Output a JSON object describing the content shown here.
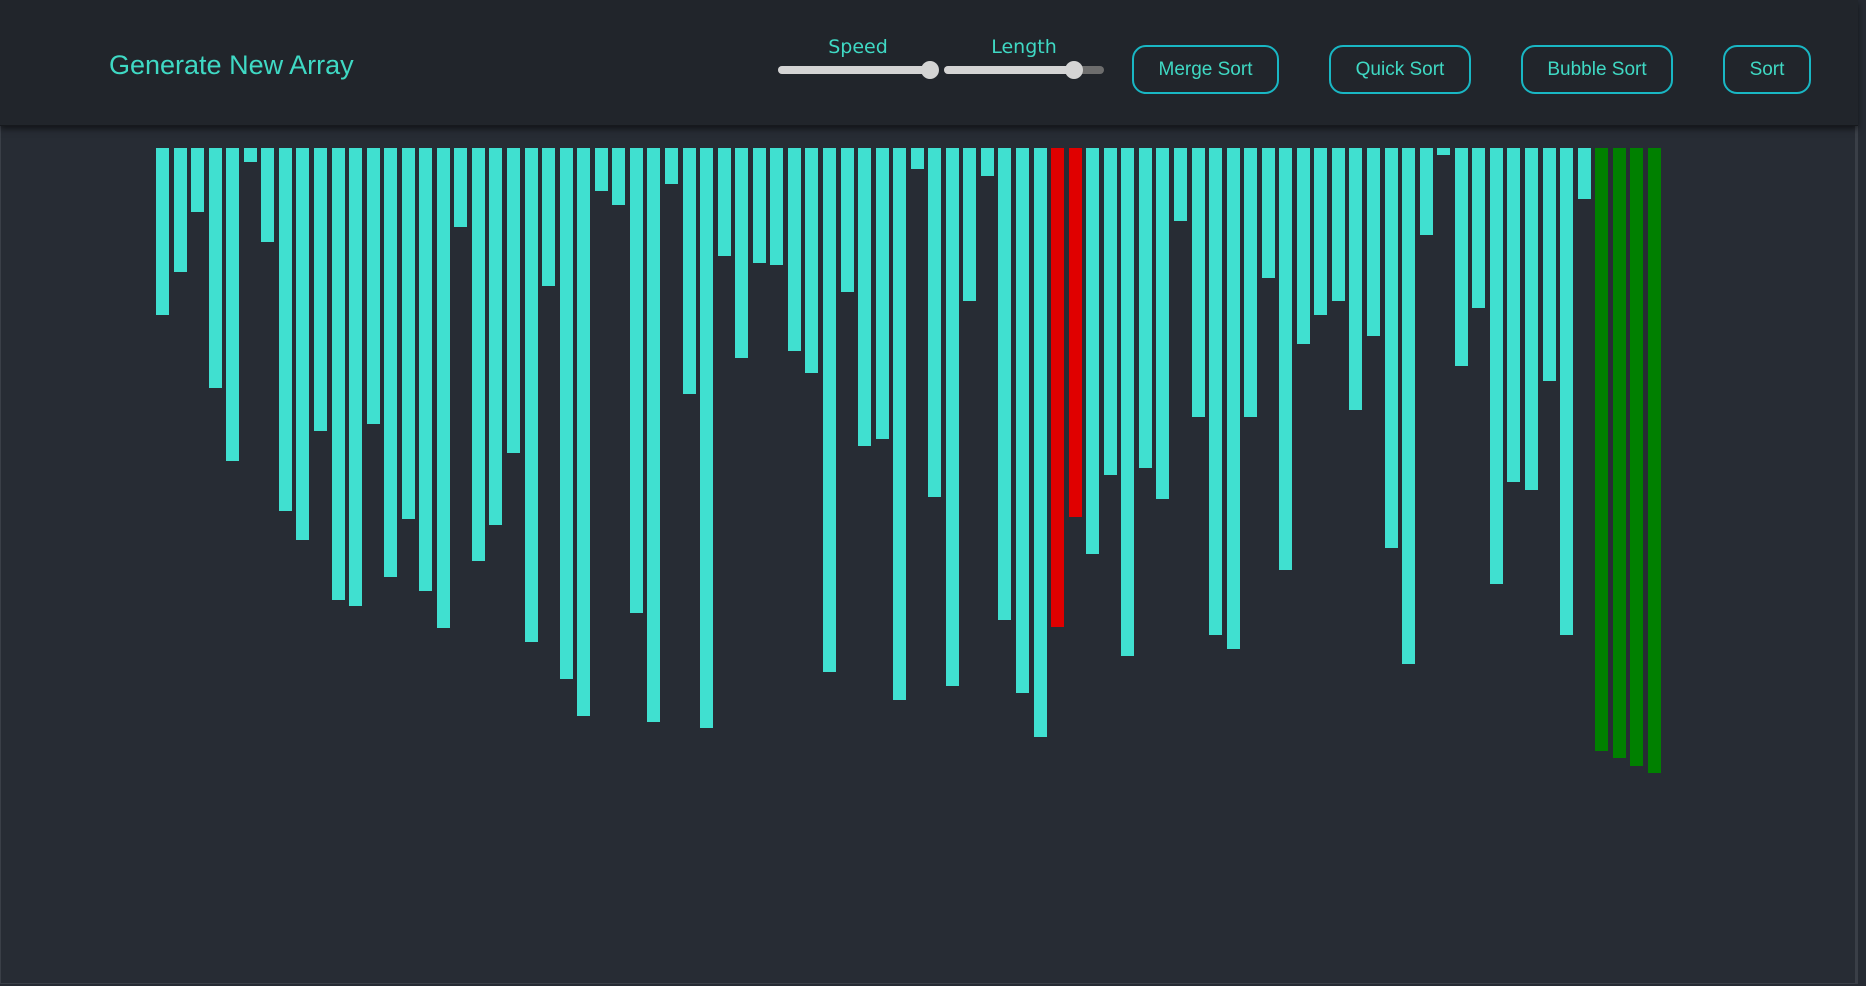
{
  "navbar": {
    "generate_label": "Generate New Array",
    "speed_label": "Speed",
    "speed_value": 0.95,
    "length_label": "Length",
    "length_value": 0.81,
    "buttons": [
      {
        "id": "merge",
        "label": "Merge Sort"
      },
      {
        "id": "quick",
        "label": "Quick Sort"
      },
      {
        "id": "bubble",
        "label": "Bubble Sort"
      },
      {
        "id": "sort",
        "label": "Sort"
      }
    ]
  },
  "colors": {
    "default": "#40e0d0",
    "comparing": "#e00000",
    "sorted": "#008000",
    "accent": "#3fd9c4"
  },
  "array": {
    "values": [
      167,
      124,
      64,
      240,
      313,
      14,
      94,
      363,
      392,
      283,
      452,
      458,
      276,
      429,
      371,
      443,
      480,
      79,
      413,
      377,
      305,
      494,
      138,
      531,
      568,
      43,
      57,
      465,
      574,
      36,
      246,
      580,
      108,
      210,
      115,
      117,
      203,
      225,
      524,
      144,
      298,
      291,
      552,
      21,
      349,
      538,
      153,
      28,
      472,
      545,
      589,
      479,
      369,
      406,
      327,
      508,
      320,
      351,
      73,
      269,
      487,
      501,
      269,
      130,
      422,
      196,
      167,
      153,
      262,
      188,
      400,
      516,
      87,
      7,
      218,
      160,
      436,
      334,
      342,
      233,
      487,
      51,
      603,
      610,
      618,
      625
    ],
    "states": [
      "d",
      "d",
      "d",
      "d",
      "d",
      "d",
      "d",
      "d",
      "d",
      "d",
      "d",
      "d",
      "d",
      "d",
      "d",
      "d",
      "d",
      "d",
      "d",
      "d",
      "d",
      "d",
      "d",
      "d",
      "d",
      "d",
      "d",
      "d",
      "d",
      "d",
      "d",
      "d",
      "d",
      "d",
      "d",
      "d",
      "d",
      "d",
      "d",
      "d",
      "d",
      "d",
      "d",
      "d",
      "d",
      "d",
      "d",
      "d",
      "d",
      "d",
      "d",
      "c",
      "c",
      "d",
      "d",
      "d",
      "d",
      "d",
      "d",
      "d",
      "d",
      "d",
      "d",
      "d",
      "d",
      "d",
      "d",
      "d",
      "d",
      "d",
      "d",
      "d",
      "d",
      "d",
      "d",
      "d",
      "d",
      "d",
      "d",
      "d",
      "d",
      "d",
      "s",
      "s",
      "s",
      "s"
    ]
  }
}
